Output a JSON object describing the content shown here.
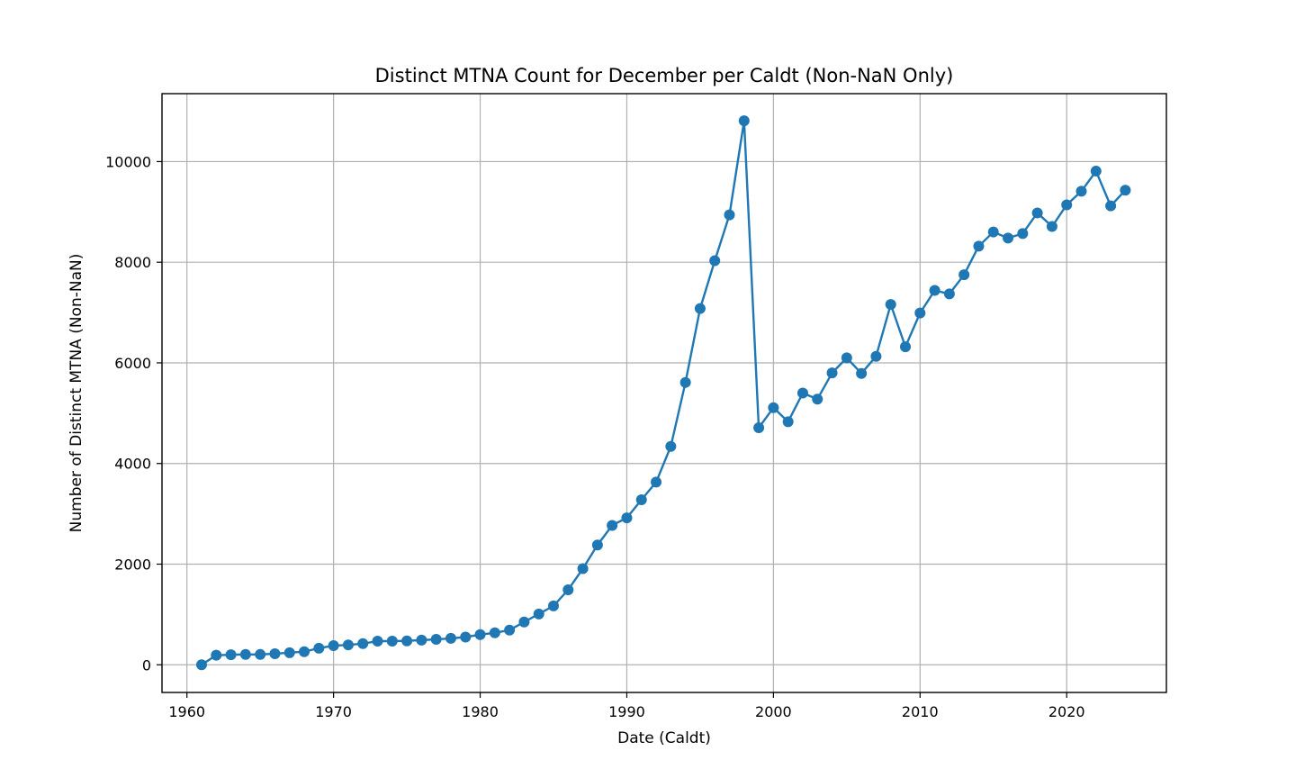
{
  "chart_data": {
    "type": "line",
    "title": "Distinct MTNA Count for December per Caldt (Non-NaN Only)",
    "xlabel": "Date (Caldt)",
    "ylabel": "Number of Distinct MTNA (Non-NaN)",
    "xlim": [
      1958.3,
      2026.8
    ],
    "ylim": [
      -550,
      11350
    ],
    "xticks": [
      1960,
      1970,
      1980,
      1990,
      2000,
      2010,
      2020
    ],
    "xtick_labels": [
      "1960",
      "1970",
      "1980",
      "1990",
      "2000",
      "2010",
      "2020"
    ],
    "yticks": [
      0,
      2000,
      4000,
      6000,
      8000,
      10000
    ],
    "ytick_labels": [
      "0",
      "2000",
      "4000",
      "6000",
      "8000",
      "10000"
    ],
    "grid": true,
    "series_color": "#1f77b4",
    "marker": "circle",
    "x": [
      1961,
      1962,
      1963,
      1964,
      1965,
      1966,
      1967,
      1968,
      1969,
      1970,
      1971,
      1972,
      1973,
      1974,
      1975,
      1976,
      1977,
      1978,
      1979,
      1980,
      1981,
      1982,
      1983,
      1984,
      1985,
      1986,
      1987,
      1988,
      1989,
      1990,
      1991,
      1992,
      1993,
      1994,
      1995,
      1996,
      1997,
      1998,
      1999,
      2000,
      2001,
      2002,
      2003,
      2004,
      2005,
      2006,
      2007,
      2008,
      2009,
      2010,
      2011,
      2012,
      2013,
      2014,
      2015,
      2016,
      2017,
      2018,
      2019,
      2020,
      2021,
      2022,
      2023,
      2024
    ],
    "y": [
      0,
      190,
      200,
      205,
      205,
      220,
      240,
      260,
      330,
      380,
      395,
      420,
      470,
      470,
      475,
      490,
      505,
      525,
      550,
      600,
      635,
      690,
      850,
      1010,
      1170,
      1490,
      1910,
      2380,
      2770,
      2920,
      3280,
      3630,
      4340,
      5610,
      7080,
      8030,
      8940,
      10810,
      4710,
      5110,
      4830,
      5400,
      5280,
      5800,
      6100,
      5790,
      6130,
      7160,
      6320,
      6990,
      7440,
      7370,
      7750,
      8320,
      8600,
      8480,
      8570,
      8980,
      8710,
      9140,
      9410,
      9810,
      9120,
      9430
    ]
  }
}
